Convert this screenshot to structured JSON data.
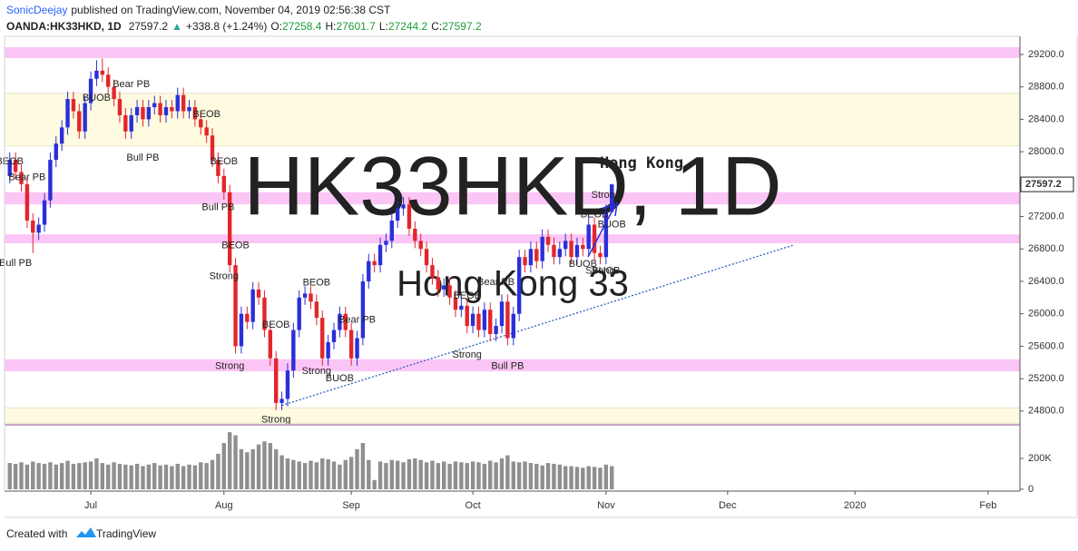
{
  "header": {
    "author": "SonicDeejay",
    "published": "published on TradingView.com, November 04, 2019 02:56:38 CST",
    "symbol": "OANDA:HK33HKD, 1D",
    "last": "27597.2",
    "arrow": "▲",
    "change": "+338.8 (+1.24%)",
    "ohlc": [
      {
        "label": "O:",
        "value": "27258.4"
      },
      {
        "label": "H:",
        "value": "27601.7"
      },
      {
        "label": "L:",
        "value": "27244.2"
      },
      {
        "label": "C:",
        "value": "27597.2"
      }
    ]
  },
  "footer": {
    "created": "Created with",
    "brand": "TradingView"
  },
  "chart_data": {
    "type": "candlestick",
    "title": "Hong Kong",
    "watermark": "HK33HKD, 1D",
    "watermark_subtitle": "Hong Kong 33",
    "up_color": "#2b2fd8",
    "down_color": "#e3262b",
    "volume_color": "#8f8f8f",
    "grid": false,
    "xlim": [
      -0.9,
      174.5
    ],
    "xticks": [
      {
        "value": 14,
        "label": "Jul"
      },
      {
        "value": 37,
        "label": "Aug"
      },
      {
        "value": 59,
        "label": "Sep"
      },
      {
        "value": 80,
        "label": "Oct"
      },
      {
        "value": 103,
        "label": "Nov"
      },
      {
        "value": 124,
        "label": "Dec"
      },
      {
        "value": 146,
        "label": "2020"
      },
      {
        "value": 169,
        "label": "Feb"
      }
    ],
    "ylim": [
      24630,
      29424
    ],
    "yticks": [
      {
        "value": 24800,
        "label": "24800.0"
      },
      {
        "value": 25200,
        "label": "25200.0"
      },
      {
        "value": 25600,
        "label": "25600.0"
      },
      {
        "value": 26000,
        "label": "26000.0"
      },
      {
        "value": 26400,
        "label": "26400.0"
      },
      {
        "value": 26800,
        "label": "26800.0"
      },
      {
        "value": 27200,
        "label": "27200.0"
      },
      {
        "value": 27600,
        "label": "27600.0"
      },
      {
        "value": 28000,
        "label": "28000.0"
      },
      {
        "value": 28400,
        "label": "28400.0"
      },
      {
        "value": 28800,
        "label": "28800.0"
      },
      {
        "value": 29200,
        "label": "29200.0"
      }
    ],
    "volume_ylim": [
      0,
      406000
    ],
    "volume_yticks": [
      0,
      {
        "value": 200000,
        "label": "200K"
      }
    ],
    "candles": {
      "open": [
        27700,
        27900,
        27750,
        27600,
        27150,
        27000,
        27100,
        27400,
        27900,
        28100,
        28300,
        28650,
        28500,
        28250,
        28600,
        28900,
        29000,
        28950,
        28800,
        28650,
        28450,
        28250,
        28450,
        28550,
        28400,
        28550,
        28600,
        28450,
        28550,
        28500,
        28700,
        28500,
        28550,
        28400,
        28300,
        28200,
        27900,
        27700,
        27500,
        26600,
        25600,
        26000,
        25900,
        26300,
        26200,
        25800,
        25450,
        24900,
        24950,
        25300,
        25800,
        26200,
        26250,
        26150,
        25950,
        25450,
        25650,
        25800,
        26000,
        25800,
        25450,
        25700,
        26400,
        26650,
        26600,
        26850,
        26900,
        27150,
        27300,
        27350,
        27050,
        26900,
        26800,
        26600,
        26450,
        26300,
        26350,
        26200,
        26050,
        26100,
        25850,
        26000,
        25800,
        26050,
        25750,
        25850,
        26150,
        25700,
        26000,
        26700,
        26600,
        26800,
        26650,
        26950,
        26850,
        26700,
        26800,
        26900,
        26700,
        26850,
        26800,
        27100,
        26750,
        26700,
        27258.4
      ],
      "high": [
        27990,
        27990,
        27840,
        27690,
        27240,
        27190,
        27490,
        27990,
        28190,
        28390,
        28740,
        28740,
        28590,
        28690,
        28990,
        29130,
        29150,
        29040,
        28890,
        28740,
        28540,
        28540,
        28640,
        28640,
        28640,
        28690,
        28690,
        28640,
        28640,
        28790,
        28790,
        28640,
        28640,
        28490,
        28390,
        28290,
        27990,
        27790,
        27590,
        26690,
        26090,
        26090,
        26390,
        26390,
        26290,
        25890,
        25540,
        25040,
        25390,
        25890,
        26290,
        26340,
        26340,
        26240,
        26040,
        25740,
        25890,
        26090,
        26090,
        25890,
        25790,
        26490,
        26740,
        26740,
        26940,
        26990,
        27240,
        27390,
        27440,
        27440,
        27140,
        26990,
        26890,
        26690,
        26540,
        26440,
        26440,
        26290,
        26190,
        26190,
        26090,
        26090,
        26140,
        26140,
        25940,
        26240,
        26240,
        26090,
        26790,
        26790,
        26890,
        26890,
        27040,
        27040,
        26940,
        26890,
        26990,
        26990,
        26940,
        26940,
        27190,
        27190,
        26840,
        27350,
        27601.7
      ],
      "low": [
        27610,
        27660,
        27510,
        27060,
        26750,
        26910,
        27010,
        27310,
        27810,
        28010,
        28210,
        28410,
        28160,
        28160,
        28510,
        28810,
        28860,
        28710,
        28560,
        28360,
        28160,
        28160,
        28360,
        28310,
        28310,
        28460,
        28360,
        28360,
        28410,
        28410,
        28410,
        28410,
        28310,
        28210,
        28110,
        27810,
        27610,
        27410,
        26510,
        25510,
        25510,
        25810,
        25810,
        26110,
        25710,
        25360,
        24810,
        24810,
        24860,
        25210,
        25710,
        26110,
        26060,
        25860,
        25360,
        25360,
        25560,
        25710,
        25710,
        25360,
        25360,
        25610,
        26310,
        26510,
        26510,
        26760,
        26810,
        27060,
        27210,
        26960,
        26810,
        26710,
        26510,
        26360,
        26210,
        26210,
        26110,
        25960,
        25960,
        25760,
        25760,
        25710,
        25710,
        25660,
        25660,
        25760,
        25610,
        25610,
        25910,
        26510,
        26510,
        26560,
        26560,
        26760,
        26610,
        26610,
        26710,
        26610,
        26610,
        26710,
        26710,
        26660,
        26610,
        26610,
        27244.2
      ],
      "close": [
        27900,
        27750,
        27600,
        27150,
        27000,
        27100,
        27400,
        27900,
        28100,
        28300,
        28650,
        28500,
        28250,
        28600,
        28900,
        29000,
        28950,
        28800,
        28650,
        28450,
        28250,
        28450,
        28550,
        28400,
        28550,
        28600,
        28450,
        28550,
        28500,
        28700,
        28500,
        28550,
        28400,
        28300,
        28200,
        27900,
        27700,
        27500,
        26600,
        25600,
        26000,
        25900,
        26300,
        26200,
        25800,
        25450,
        24900,
        24950,
        25300,
        25800,
        26200,
        26250,
        26150,
        25950,
        25450,
        25650,
        25800,
        26000,
        25800,
        25450,
        25700,
        26400,
        26650,
        26600,
        26850,
        26900,
        27150,
        27300,
        27350,
        27050,
        26900,
        26800,
        26600,
        26450,
        26300,
        26350,
        26200,
        26050,
        26100,
        25850,
        26000,
        25800,
        26050,
        25750,
        25850,
        26150,
        25700,
        26000,
        26700,
        26600,
        26800,
        26650,
        26950,
        26850,
        26700,
        26800,
        26900,
        26700,
        26850,
        26800,
        27100,
        26750,
        26700,
        27258.4,
        27597.2
      ]
    },
    "volume": [
      170000,
      165000,
      175000,
      160000,
      180000,
      170000,
      165000,
      175000,
      160000,
      170000,
      185000,
      165000,
      170000,
      175000,
      180000,
      200000,
      170000,
      160000,
      175000,
      165000,
      160000,
      155000,
      165000,
      150000,
      160000,
      170000,
      155000,
      160000,
      150000,
      165000,
      150000,
      160000,
      155000,
      175000,
      170000,
      190000,
      230000,
      300000,
      370000,
      350000,
      260000,
      240000,
      260000,
      290000,
      310000,
      300000,
      260000,
      220000,
      200000,
      190000,
      180000,
      170000,
      185000,
      175000,
      200000,
      195000,
      180000,
      160000,
      190000,
      210000,
      260000,
      300000,
      190000,
      60000,
      180000,
      170000,
      190000,
      185000,
      175000,
      195000,
      200000,
      190000,
      175000,
      185000,
      170000,
      180000,
      165000,
      180000,
      175000,
      170000,
      180000,
      175000,
      165000,
      185000,
      175000,
      200000,
      220000,
      180000,
      175000,
      180000,
      170000,
      165000,
      155000,
      170000,
      165000,
      160000,
      150000,
      150000,
      145000,
      140000,
      150000,
      145000,
      140000,
      160000,
      150000
    ],
    "zones": [
      {
        "low": 29155,
        "high": 29290,
        "color": "#fbc6f6"
      },
      {
        "low": 28070,
        "high": 28720,
        "color": "#fefbe0"
      },
      {
        "low": 27350,
        "high": 27500,
        "color": "#fbc6f6"
      },
      {
        "low": 26870,
        "high": 26980,
        "color": "#fbc6f6"
      },
      {
        "low": 25290,
        "high": 25440,
        "color": "#fbc6f6"
      },
      {
        "low": 24650,
        "high": 24840,
        "color": "#fefbe0"
      }
    ],
    "trendline": {
      "x": [
        47,
        135.5
      ],
      "y": [
        24870,
        26850
      ],
      "color": "#2b5fc4"
    },
    "annotations": [
      {
        "text": "BEOB",
        "x": 0,
        "y": 27880,
        "color": "#e0504f"
      },
      {
        "text": "Bear PB",
        "x": 3,
        "y": 27680,
        "color": "#e0504f"
      },
      {
        "text": "Bull PB",
        "x": 1,
        "y": 26624,
        "color": "#5151c9"
      },
      {
        "text": "BUOB",
        "x": 15,
        "y": 28660,
        "color": "#5151c9"
      },
      {
        "text": "Bear PB",
        "x": 21,
        "y": 28830,
        "color": "#e0504f"
      },
      {
        "text": "Bull PB",
        "x": 23,
        "y": 27920,
        "color": "#5151c9"
      },
      {
        "text": "BEOB",
        "x": 34,
        "y": 28460,
        "color": "#e0504f"
      },
      {
        "text": "BEOB",
        "x": 37,
        "y": 27880,
        "color": "#e0504f"
      },
      {
        "text": "Bull PB",
        "x": 36,
        "y": 27310,
        "color": "#5151c9"
      },
      {
        "text": "BEOB",
        "x": 39,
        "y": 26840,
        "color": "#e0504f"
      },
      {
        "text": "Strong",
        "x": 37,
        "y": 26460,
        "color": "#e0504f"
      },
      {
        "text": "Strong",
        "x": 38,
        "y": 25350,
        "color": "#e0504f"
      },
      {
        "text": "BEOB",
        "x": 46,
        "y": 25860,
        "color": "#e0504f"
      },
      {
        "text": "Strong",
        "x": 46,
        "y": 24690,
        "color": "#e0504f"
      },
      {
        "text": "BEOB",
        "x": 53,
        "y": 26380,
        "color": "#e0504f"
      },
      {
        "text": "Strong",
        "x": 53,
        "y": 25290,
        "color": "#e0504f"
      },
      {
        "text": "Bear PB",
        "x": 60,
        "y": 25920,
        "color": "#e0504f"
      },
      {
        "text": "BUOB",
        "x": 57,
        "y": 25200,
        "color": "#5151c9"
      },
      {
        "text": "BEOB",
        "x": 79,
        "y": 26220,
        "color": "#e0504f"
      },
      {
        "text": "Strong",
        "x": 79,
        "y": 25490,
        "color": "#e0504f"
      },
      {
        "text": "Bear PB",
        "x": 84,
        "y": 26390,
        "color": "#e0504f"
      },
      {
        "text": "Bull PB",
        "x": 86,
        "y": 25350,
        "color": "#5151c9"
      },
      {
        "text": "BEOB",
        "x": 101,
        "y": 27220,
        "color": "#e0504f"
      },
      {
        "text": "BUOB",
        "x": 99,
        "y": 26610,
        "color": "#5151c9"
      },
      {
        "text": "Strong",
        "x": 102,
        "y": 26530,
        "color": "#e0504f"
      },
      {
        "text": "BUOB",
        "x": 103,
        "y": 26530,
        "color": "#5151c9"
      },
      {
        "text": "BUOB",
        "x": 104,
        "y": 27100,
        "color": "#5151c9"
      },
      {
        "text": "Strong",
        "x": 103,
        "y": 27460,
        "color": "#7a5bd0"
      }
    ]
  }
}
